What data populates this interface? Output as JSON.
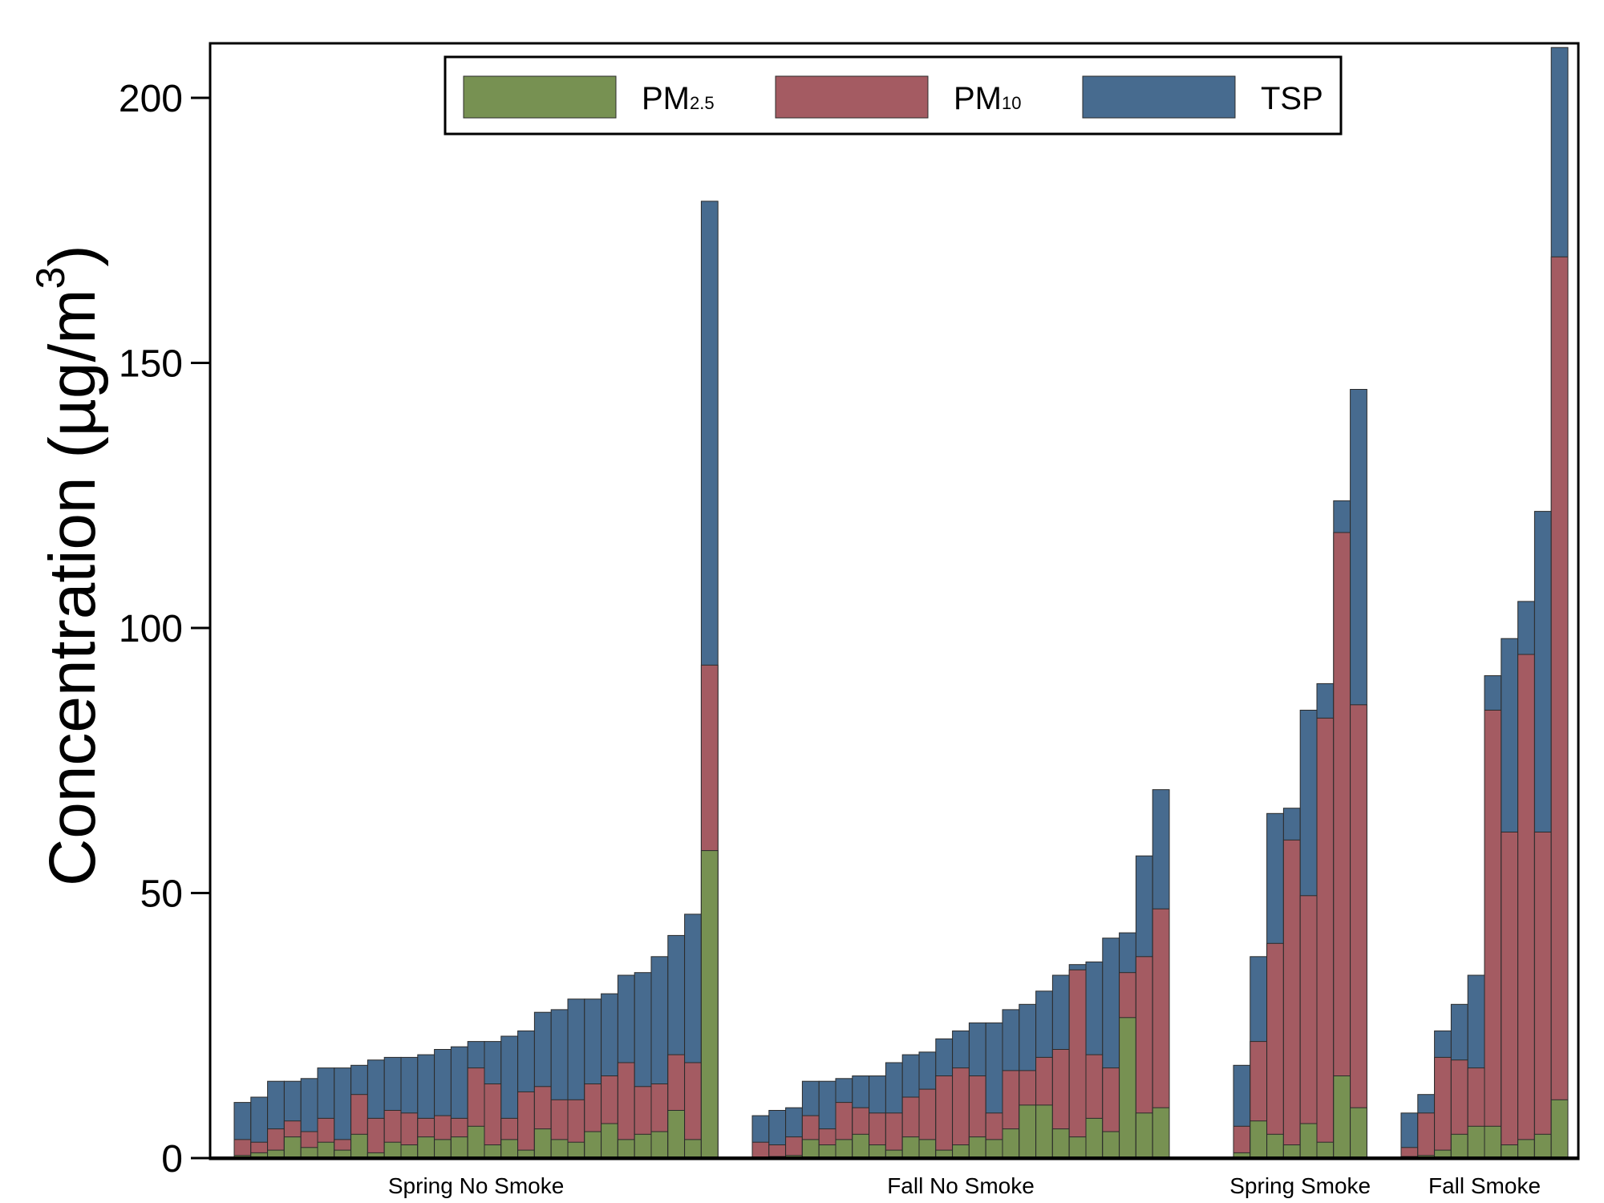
{
  "chart_data": {
    "type": "bar",
    "stacked": true,
    "ylabel": "Concentration (µg/m",
    "ylabel_superscript": "3",
    "ylabel_close": ")",
    "ylim": [
      0,
      210
    ],
    "yticks": [
      0,
      50,
      100,
      150,
      200
    ],
    "grid": false,
    "legend": {
      "placement": "top",
      "entries": [
        {
          "key": "pm25",
          "name": "PM",
          "sub": "2.5",
          "color": "#779152"
        },
        {
          "key": "pm10",
          "name": "PM",
          "sub": "10",
          "color": "#a45b62"
        },
        {
          "key": "tsp",
          "name": "TSP",
          "sub": "",
          "color": "#476b8f"
        }
      ]
    },
    "groups": [
      {
        "label": "Spring No Smoke",
        "pm25": [
          0.5,
          1,
          1.5,
          4,
          2,
          3,
          1.5,
          4.5,
          1,
          3,
          2.5,
          4,
          3.5,
          4,
          6,
          2.5,
          3.5,
          1.5,
          5.5,
          3.5,
          3,
          5,
          6.5,
          3.5,
          4.5,
          5,
          9,
          3.5,
          58
        ],
        "pm10": [
          3.5,
          3,
          5.5,
          7,
          5,
          7.5,
          3.5,
          12,
          7.5,
          9,
          8.5,
          7.5,
          8,
          7.5,
          17,
          14,
          7.5,
          12.5,
          13.5,
          11,
          11,
          14,
          15.5,
          18,
          13.5,
          14,
          19.5,
          18,
          93
        ],
        "tsp": [
          10.5,
          11.5,
          14.5,
          14.5,
          15,
          17,
          17,
          17.5,
          18.5,
          19,
          19,
          19.5,
          20.5,
          21,
          22,
          22,
          23,
          24,
          27.5,
          28,
          30,
          30,
          31,
          34.5,
          35,
          38,
          42,
          46,
          180.5
        ]
      },
      {
        "label": "Fall No Smoke",
        "pm25": [
          0.2,
          0.3,
          0.5,
          3.5,
          2.5,
          3.5,
          4.5,
          2.5,
          1.5,
          4,
          3.5,
          1.5,
          2.5,
          4,
          3.5,
          5.5,
          10,
          10,
          5.5,
          4,
          7.5,
          5,
          26.5,
          8.5,
          9.5
        ],
        "pm10": [
          3,
          2.5,
          4,
          8,
          5.5,
          10.5,
          9.5,
          8.5,
          8.5,
          11.5,
          13,
          15.5,
          17,
          15.5,
          8.5,
          16.5,
          16.5,
          19,
          20.5,
          35.5,
          19.5,
          17,
          35,
          38,
          47
        ],
        "tsp": [
          8,
          9,
          9.5,
          14.5,
          14.5,
          15,
          15.5,
          15.5,
          18,
          19.5,
          20,
          22.5,
          24,
          25.5,
          25.5,
          28,
          29,
          31.5,
          34.5,
          36.5,
          37,
          41.5,
          42.5,
          57,
          69.5
        ]
      },
      {
        "label": "Spring Smoke",
        "pm25": [
          1,
          7,
          4.5,
          2.5,
          6.5,
          3,
          15.5,
          9.5
        ],
        "pm10": [
          6,
          22,
          40.5,
          60,
          49.5,
          83,
          118,
          85.5
        ],
        "tsp": [
          17.5,
          38,
          65,
          66,
          84.5,
          89.5,
          124,
          145
        ]
      },
      {
        "label": "Fall Smoke",
        "pm25": [
          0.3,
          0.5,
          1.5,
          4.5,
          6,
          6,
          2.5,
          3.5,
          4.5,
          11
        ],
        "pm10": [
          2,
          8.5,
          19,
          18.5,
          17,
          84.5,
          61.5,
          95,
          61.5,
          170
        ],
        "tsp": [
          8.5,
          12,
          24,
          29,
          34.5,
          91,
          98,
          105,
          122,
          209.5
        ]
      }
    ]
  }
}
